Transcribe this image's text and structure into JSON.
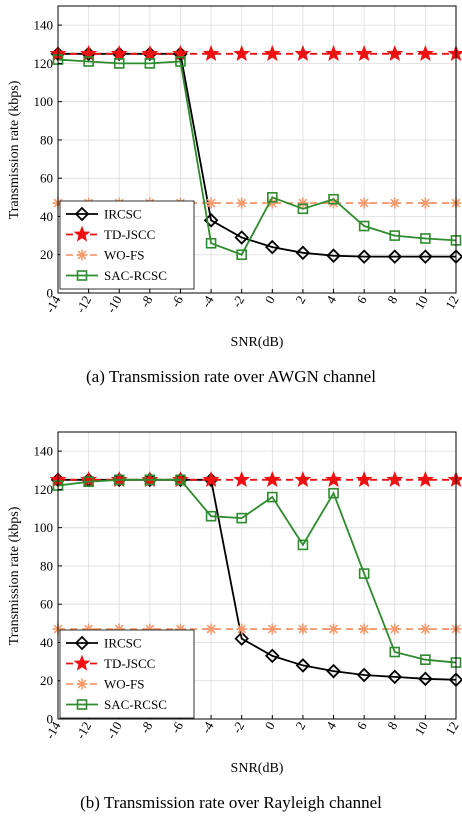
{
  "chart_data": [
    {
      "type": "line",
      "caption": "(a) Transmission rate over AWGN channel",
      "xlabel": "SNR(dB)",
      "ylabel": "Transmission rate (kbps)",
      "xlim": [
        -14,
        12
      ],
      "ylim": [
        0,
        150
      ],
      "xticks": [
        -14,
        -12,
        -10,
        -8,
        -6,
        -4,
        -2,
        0,
        2,
        4,
        6,
        8,
        10,
        12
      ],
      "yticks": [
        0,
        20,
        40,
        60,
        80,
        100,
        120,
        140
      ],
      "grid": true,
      "legend_position": "bottom-left",
      "series": [
        {
          "name": "IRCSC",
          "color": "#000000",
          "marker": "diamond",
          "dash": "solid",
          "x": [
            -14,
            -12,
            -10,
            -8,
            -6,
            -4,
            -2,
            0,
            2,
            4,
            6,
            8,
            10,
            12
          ],
          "values": [
            125,
            125,
            125,
            125,
            125,
            38,
            29,
            24,
            21,
            19.5,
            19,
            19,
            19,
            19
          ]
        },
        {
          "name": "TD-JSCC",
          "color": "#ee1111",
          "marker": "star",
          "dash": "dashed",
          "x": [
            -14,
            -12,
            -10,
            -8,
            -6,
            -4,
            -2,
            0,
            2,
            4,
            6,
            8,
            10,
            12
          ],
          "values": [
            125,
            125,
            125,
            125,
            125,
            125,
            125,
            125,
            125,
            125,
            125,
            125,
            125,
            125
          ]
        },
        {
          "name": "WO-FS",
          "color": "#f59a6c",
          "marker": "asterisk",
          "dash": "dashed",
          "x": [
            -14,
            -12,
            -10,
            -8,
            -6,
            -4,
            -2,
            0,
            2,
            4,
            6,
            8,
            10,
            12
          ],
          "values": [
            47,
            47,
            47,
            47,
            47,
            47,
            47,
            47,
            47,
            47,
            47,
            47,
            47,
            47
          ]
        },
        {
          "name": "SAC-RCSC",
          "color": "#2e8b2e",
          "marker": "square",
          "dash": "solid",
          "x": [
            -14,
            -12,
            -10,
            -8,
            -6,
            -4,
            -2,
            0,
            2,
            4,
            6,
            8,
            10,
            12
          ],
          "values": [
            122,
            121,
            120,
            120,
            121,
            26,
            20,
            50,
            44,
            49,
            35,
            30,
            28.5,
            27.5
          ]
        }
      ]
    },
    {
      "type": "line",
      "caption": "(b) Transmission rate over Rayleigh channel",
      "xlabel": "SNR(dB)",
      "ylabel": "Transmission rate (kbps)",
      "xlim": [
        -14,
        12
      ],
      "ylim": [
        0,
        150
      ],
      "xticks": [
        -14,
        -12,
        -10,
        -8,
        -6,
        -4,
        -2,
        0,
        2,
        4,
        6,
        8,
        10,
        12
      ],
      "yticks": [
        0,
        20,
        40,
        60,
        80,
        100,
        120,
        140
      ],
      "grid": true,
      "legend_position": "bottom-left",
      "series": [
        {
          "name": "IRCSC",
          "color": "#000000",
          "marker": "diamond",
          "dash": "solid",
          "x": [
            -14,
            -12,
            -10,
            -8,
            -6,
            -4,
            -2,
            0,
            2,
            4,
            6,
            8,
            10,
            12
          ],
          "values": [
            125,
            125,
            125,
            125,
            125,
            125,
            42,
            33,
            28,
            25,
            23,
            22,
            21,
            20.5
          ]
        },
        {
          "name": "TD-JSCC",
          "color": "#ee1111",
          "marker": "star",
          "dash": "dashed",
          "x": [
            -14,
            -12,
            -10,
            -8,
            -6,
            -4,
            -2,
            0,
            2,
            4,
            6,
            8,
            10,
            12
          ],
          "values": [
            125,
            125,
            125,
            125,
            125,
            125,
            125,
            125,
            125,
            125,
            125,
            125,
            125,
            125
          ]
        },
        {
          "name": "WO-FS",
          "color": "#f59a6c",
          "marker": "asterisk",
          "dash": "dashed",
          "x": [
            -14,
            -12,
            -10,
            -8,
            -6,
            -4,
            -2,
            0,
            2,
            4,
            6,
            8,
            10,
            12
          ],
          "values": [
            47,
            47,
            47,
            47,
            47,
            47,
            47,
            47,
            47,
            47,
            47,
            47,
            47,
            47
          ]
        },
        {
          "name": "SAC-RCSC",
          "color": "#2e8b2e",
          "marker": "square",
          "dash": "solid",
          "x": [
            -14,
            -12,
            -10,
            -8,
            -6,
            -4,
            -2,
            0,
            2,
            4,
            6,
            8,
            10,
            12
          ],
          "values": [
            122,
            124,
            125,
            125,
            125,
            106,
            105,
            116,
            91,
            118,
            76,
            35,
            31,
            29.5
          ]
        }
      ]
    }
  ]
}
